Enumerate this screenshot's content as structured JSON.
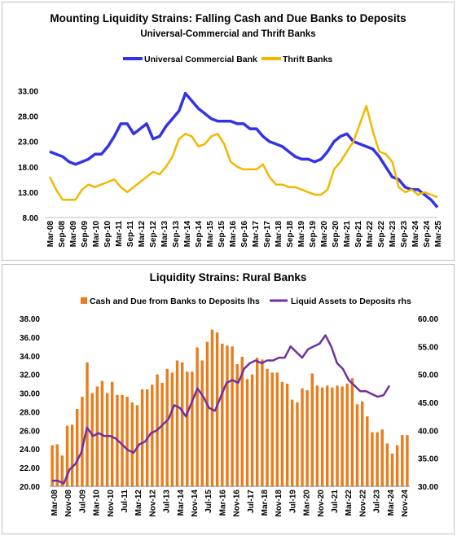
{
  "chart_data": [
    {
      "type": "line",
      "title": "Mounting Liquidity Strains: Falling Cash and Due Banks to Deposits",
      "subtitle": "Universal-Commercial  and Thrift Banks",
      "x_tick_labels": [
        "Mar-08",
        "Sep-08",
        "Mar-09",
        "Sep-09",
        "Mar-10",
        "Sep-10",
        "Mar-11",
        "Sep-11",
        "Mar-12",
        "Sep-12",
        "Mar-13",
        "Sep-13",
        "Mar-14",
        "Sep-14",
        "Mar-15",
        "Sep-15",
        "Mar-16",
        "Sep-16",
        "Mar-17",
        "Sep-17",
        "Mar-18",
        "Sep-18",
        "Mar-19",
        "Sep-19",
        "Mar-20",
        "Sep-20",
        "Mar-21",
        "Sep-21",
        "Mar-22",
        "Sep-22",
        "Mar-23",
        "Sep-23",
        "Mar-24",
        "Sep-24",
        "Mar-25"
      ],
      "y_tick_labels": [
        "8.00",
        "13.00",
        "18.00",
        "23.00",
        "28.00",
        "33.00"
      ],
      "ylim": [
        8,
        35
      ],
      "legend_position": "top",
      "series": [
        {
          "name": "Universal Commercial Bank",
          "color": "#3333e6",
          "values": [
            21,
            20.5,
            20,
            19,
            18.5,
            19,
            19.5,
            20.5,
            20.5,
            22,
            24,
            26.5,
            26.5,
            24.5,
            25.5,
            26.5,
            23.5,
            24,
            26,
            27.5,
            29,
            32.5,
            31,
            29.5,
            28.5,
            27.5,
            27,
            27,
            27,
            26.5,
            26.5,
            25.5,
            25.5,
            24,
            23,
            22.5,
            22,
            21,
            20,
            19.5,
            19.5,
            19,
            19.5,
            21,
            23,
            24,
            24.5,
            23,
            22.5,
            22,
            21.5,
            20,
            18,
            16,
            15.5,
            14,
            13.5,
            13.5,
            12.5,
            11.5,
            10
          ]
        },
        {
          "name": "Thrift Banks",
          "color": "#f2b800",
          "values": [
            16,
            13.5,
            11.5,
            11.5,
            11.5,
            13.5,
            14.5,
            14,
            14.5,
            15,
            15.5,
            14,
            13,
            14,
            15,
            16,
            17,
            16.5,
            18,
            20,
            23.5,
            24.5,
            24,
            22,
            22.5,
            24,
            24.5,
            22.5,
            19,
            18,
            17.5,
            17.5,
            17.5,
            18.5,
            16,
            14.5,
            14.5,
            14,
            14,
            13.5,
            13,
            12.5,
            12.5,
            13.5,
            17.5,
            19,
            21,
            23,
            26.5,
            30,
            25,
            21,
            20.5,
            19,
            14,
            13,
            13.5,
            12.5,
            13,
            12.5,
            12
          ]
        }
      ]
    },
    {
      "type": "bar+line",
      "title": "Liquidity Strains: Rural Banks",
      "x_tick_labels": [
        "Mar-08",
        "Jul-09",
        "Nov-10",
        "Mar-12",
        "Jul-13",
        "Nov-14",
        "Mar-16",
        "Jul-17",
        "Nov-18",
        "Mar-20",
        "Jul-21",
        "Nov-22",
        "Mar-24",
        "Jul-09",
        "Nov-10",
        "Jul-11",
        "Nov-12",
        "Jul-13",
        "Nov-14",
        "Jul-15",
        "Nov-16",
        "Mar-18",
        "Jul-19",
        "Nov-20",
        "Jul-21",
        "Mar-22",
        "Jul-23",
        "Nov-24"
      ],
      "x_tick_labels_shown": [
        "Mar-08",
        "Nov-08",
        "Jul-09",
        "Mar-10",
        "Nov-10",
        "Jul-11",
        "Mar-12",
        "Nov-12",
        "Jul-13",
        "Mar-14",
        "Nov-14",
        "Jul-15",
        "Mar-16",
        "Nov-16",
        "Jul-17",
        "Mar-18",
        "Nov-18",
        "Jul-19",
        "Mar-20",
        "Nov-20",
        "Jul-21",
        "Mar-22",
        "Nov-22",
        "Jul-23",
        "Mar-24",
        "Nov-24"
      ],
      "y_left_tick_labels": [
        "20.00",
        "22.00",
        "24.00",
        "26.00",
        "28.00",
        "30.00",
        "32.00",
        "34.00",
        "36.00",
        "38.00"
      ],
      "y_right_tick_labels": [
        "30.00",
        "35.00",
        "40.00",
        "45.00",
        "50.00",
        "55.00",
        "60.00"
      ],
      "ylim_left": [
        20,
        38
      ],
      "ylim_right": [
        30,
        60
      ],
      "legend_position": "top",
      "series": [
        {
          "name": "Cash and Due from Banks to Deposits lhs",
          "color": "#e87d1e",
          "axis": "left",
          "values": [
            24.4,
            24.5,
            23.3,
            26.5,
            26.6,
            28.3,
            29.6,
            33.3,
            30,
            30.7,
            31.3,
            30,
            31.2,
            29.8,
            29.8,
            29.6,
            29,
            28.7,
            30.4,
            30.4,
            30.9,
            32,
            31.1,
            32.6,
            32.2,
            33.5,
            33.3,
            32.3,
            32.3,
            34.9,
            33.5,
            35.5,
            36.8,
            36.5,
            35.3,
            35.1,
            35,
            33.1,
            33.9,
            31.5,
            32,
            33.8,
            33.6,
            32.6,
            32.2,
            32.2,
            31.2,
            31,
            29.3,
            29,
            30.5,
            30.3,
            32.1,
            30.8,
            30.6,
            30.8,
            30.6,
            30.8,
            30.7,
            31,
            31.6,
            28.8,
            29.1,
            27.5,
            25.8,
            25.8,
            26.1,
            24.6,
            23.5,
            24.4,
            25.5,
            25.5
          ]
        },
        {
          "name": "Liquid Assets to Deposits rhs",
          "color": "#7030a0",
          "axis": "right",
          "values": [
            31,
            31,
            30.5,
            33,
            34,
            36,
            40.5,
            39,
            39.5,
            39,
            39,
            38.5,
            37.5,
            36.5,
            36,
            37.5,
            38,
            39.5,
            40,
            41,
            42,
            44.5,
            44,
            42.5,
            45,
            47.5,
            46,
            44,
            43.5,
            46,
            48.5,
            49,
            48.5,
            51,
            52,
            52.5,
            52,
            52.5,
            52.5,
            53,
            53,
            55,
            54,
            53,
            54.5,
            55,
            55.5,
            57,
            55,
            52,
            51,
            49,
            48,
            47,
            47,
            46.5,
            46,
            46.3,
            48
          ]
        }
      ]
    }
  ]
}
